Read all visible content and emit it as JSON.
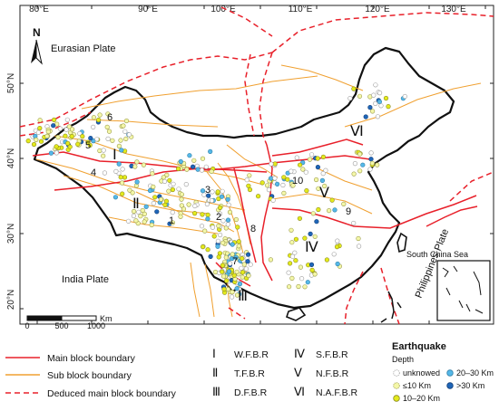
{
  "map": {
    "lon_labels": [
      "80°E",
      "90°E",
      "100°E",
      "110°E",
      "120°E",
      "130°E"
    ],
    "lat_labels": [
      "50°N",
      "40°N",
      "30°N",
      "20°N"
    ],
    "north_label": "N",
    "plates": {
      "eurasian": "Eurasian Plate",
      "india": "India Plate",
      "philippines": "Philippines Plate"
    },
    "south_china_sea": "South China Sea",
    "scale_bar": {
      "labels": [
        "0",
        "500",
        "1000"
      ],
      "unit": "Km"
    },
    "block_numerals": [
      "Ⅰ",
      "Ⅱ",
      "Ⅲ",
      "Ⅳ",
      "Ⅴ",
      "Ⅵ"
    ],
    "fault_numbers": [
      "1",
      "2",
      "3",
      "4",
      "5",
      "6",
      "7",
      "8",
      "9",
      "10"
    ]
  },
  "legend": {
    "boundaries": [
      {
        "label": "Main block boundary",
        "color": "#e8202a",
        "style": "solid"
      },
      {
        "label": "Sub block boundary",
        "color": "#f0a030",
        "style": "solid"
      },
      {
        "label": "Deduced main block boundary",
        "color": "#e8202a",
        "style": "dashed"
      }
    ],
    "blocks": [
      {
        "numeral": "Ⅰ",
        "name": "W.F.B.R"
      },
      {
        "numeral": "Ⅱ",
        "name": "T.F.B.R"
      },
      {
        "numeral": "Ⅲ",
        "name": "D.F.B.R"
      },
      {
        "numeral": "Ⅳ",
        "name": "S.F.B.R"
      },
      {
        "numeral": "Ⅴ",
        "name": "N.F.B.R"
      },
      {
        "numeral": "Ⅵ",
        "name": "N.A.F.B.R"
      }
    ],
    "earthquake": {
      "title": "Earthquake",
      "subtitle": "Depth",
      "classes": [
        {
          "label": "unknowed",
          "color": "#ffffff"
        },
        {
          "label": "≤10 Km",
          "color": "#f4f7a8"
        },
        {
          "label": "10–20 Km",
          "color": "#e4ea1c"
        },
        {
          "label": "20–30 Km",
          "color": "#55b8e8"
        },
        {
          "label": ">30 Km",
          "color": "#1f66b8"
        }
      ]
    }
  }
}
